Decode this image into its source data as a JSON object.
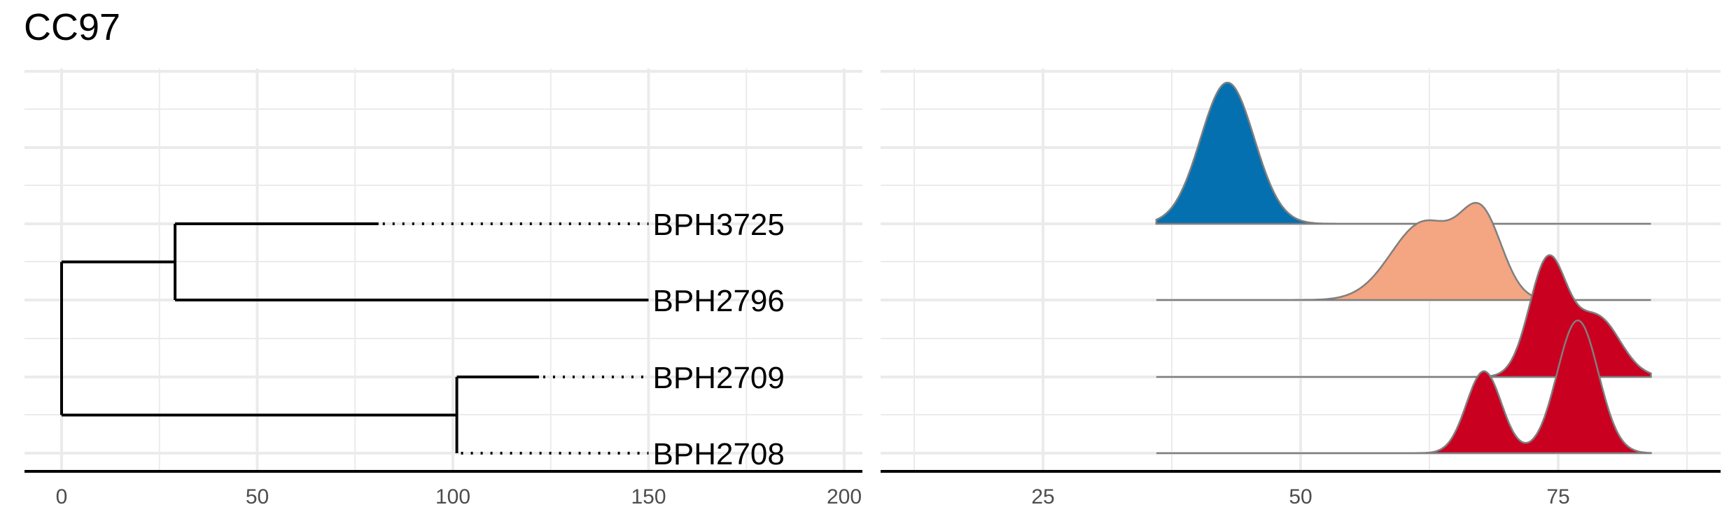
{
  "chart_data": [
    {
      "type": "dendrogram",
      "title": "CC97",
      "xlim": [
        0,
        200
      ],
      "x_ticks": [
        0,
        50,
        100,
        150,
        200
      ],
      "tips": [
        "BPH3725",
        "BPH2796",
        "BPH2709",
        "BPH2708"
      ],
      "tip_label_x": 150,
      "branches": [
        {
          "name": "BPH3725",
          "from": 29,
          "to": 81
        },
        {
          "name": "BPH2796",
          "from": 29,
          "to": 150
        },
        {
          "name": "BPH2709",
          "from": 101,
          "to": 122
        },
        {
          "name": "BPH2708",
          "from": 101,
          "to": 101
        },
        {
          "name": "clade-top",
          "from": 0,
          "to": 29
        },
        {
          "name": "clade-bottom",
          "from": 0,
          "to": 101
        }
      ],
      "grid": true
    },
    {
      "type": "ridgeline",
      "xlim": [
        11,
        91
      ],
      "x_ticks": [
        25,
        50,
        75
      ],
      "x_range": [
        36,
        84
      ],
      "series": [
        {
          "tip": "BPH3725",
          "color": "#0570b0",
          "peaks": [
            {
              "mu": 42.9,
              "sd": 2.6,
              "h": 1.0
            }
          ]
        },
        {
          "tip": "BPH2796",
          "color": "#f4a582",
          "peaks": [
            {
              "mu": 62.0,
              "sd": 3.2,
              "h": 0.55
            },
            {
              "mu": 67.6,
              "sd": 2.0,
              "h": 0.55
            }
          ]
        },
        {
          "tip": "BPH2709",
          "color": "#ca0020",
          "peaks": [
            {
              "mu": 74.0,
              "sd": 1.8,
              "h": 0.82
            },
            {
              "mu": 78.8,
              "sd": 2.2,
              "h": 0.42
            }
          ]
        },
        {
          "tip": "BPH2708",
          "color": "#ca0020",
          "peaks": [
            {
              "mu": 67.8,
              "sd": 1.7,
              "h": 0.58
            },
            {
              "mu": 76.9,
              "sd": 2.0,
              "h": 0.94
            }
          ]
        }
      ],
      "grid": true
    }
  ]
}
